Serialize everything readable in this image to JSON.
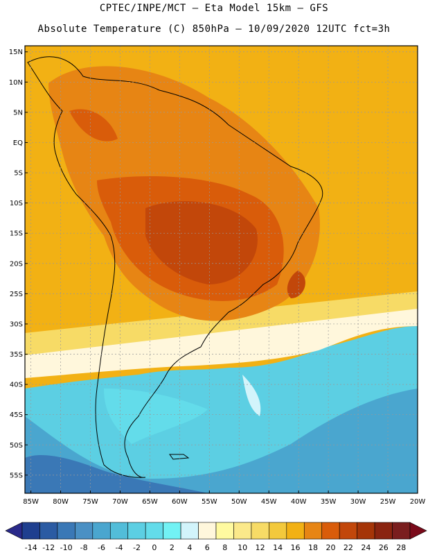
{
  "header": {
    "line1": "CPTEC/INPE/MCT –  Eta Model 15km – GFS",
    "line2": "Absolute Temperature (C) 850hPa – 10/09/2020 12UTC fct=3h"
  },
  "map": {
    "lat_labels": [
      "15N",
      "10N",
      "5N",
      "EQ",
      "5S",
      "10S",
      "15S",
      "20S",
      "25S",
      "30S",
      "35S",
      "40S",
      "45S",
      "50S",
      "55S"
    ],
    "lat_values": [
      15,
      10,
      5,
      0,
      -5,
      -10,
      -15,
      -20,
      -25,
      -30,
      -35,
      -40,
      -45,
      -50,
      -55
    ],
    "lon_labels": [
      "85W",
      "80W",
      "75W",
      "70W",
      "65W",
      "60W",
      "55W",
      "50W",
      "45W",
      "40W",
      "35W",
      "30W",
      "25W",
      "20W"
    ],
    "lon_values": [
      -85,
      -80,
      -75,
      -70,
      -65,
      -60,
      -55,
      -50,
      -45,
      -40,
      -35,
      -30,
      -25,
      -20
    ],
    "lat_range": [
      -58,
      16
    ],
    "lon_range": [
      -86,
      -20
    ],
    "grid": true
  },
  "colorbar": {
    "labels": [
      "-14",
      "-12",
      "-10",
      "-8",
      "-6",
      "-4",
      "-2",
      "0",
      "2",
      "4",
      "6",
      "8",
      "10",
      "12",
      "14",
      "16",
      "18",
      "20",
      "22",
      "24",
      "26",
      "28"
    ],
    "colors": [
      "#1f3f8f",
      "#2b5ba3",
      "#3a78b6",
      "#4a90c4",
      "#4aa6cf",
      "#52bdd9",
      "#5ccfe3",
      "#63dcea",
      "#72f2f4",
      "#d2f4fb",
      "#fff7dc",
      "#fffaa0",
      "#fbe98a",
      "#f7db66",
      "#f3c93c",
      "#f2b114",
      "#e78514",
      "#d95c0a",
      "#c2470a",
      "#a53508",
      "#8a2410",
      "#7a1e1e"
    ],
    "under_color": "#2a2a8a",
    "over_color": "#7a0a1a"
  }
}
